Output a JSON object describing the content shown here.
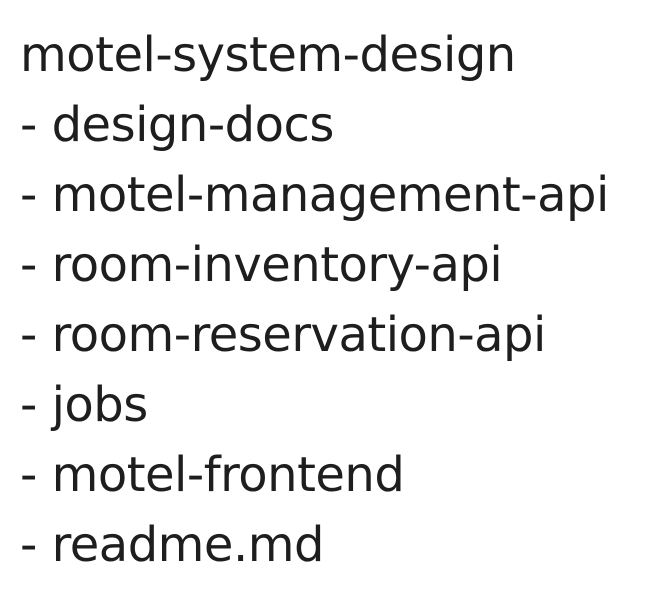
{
  "canvas": {
    "background": "#ffffff",
    "ink_color": "#1e1e1e"
  },
  "tree": {
    "root": "motel-system-design",
    "items": [
      "- design-docs",
      "- motel-management-api",
      "- room-inventory-api",
      "- room-reservation-api",
      "- jobs",
      "- motel-frontend",
      "- readme.md"
    ]
  }
}
